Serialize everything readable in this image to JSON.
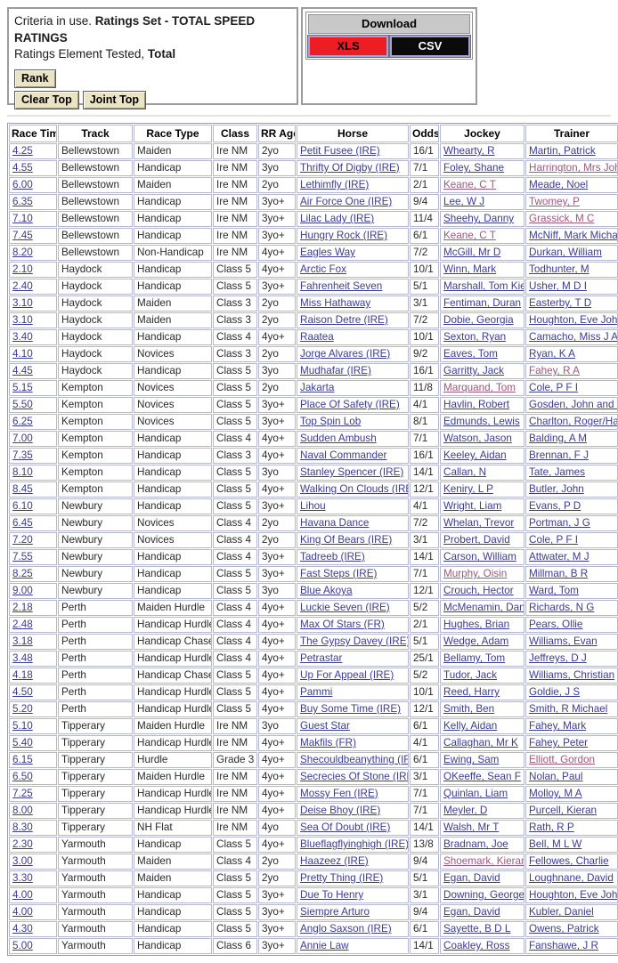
{
  "criteria": {
    "prefix": "Criteria in use. ",
    "ratings_set": "Ratings Set - TOTAL SPEED RATINGS",
    "element_prefix": "Ratings Element Tested, ",
    "element_value": "Total",
    "rank_button": "Rank",
    "clear_top_button": "Clear Top",
    "joint_top_button": "Joint Top"
  },
  "download": {
    "title": "Download",
    "xls_label": "XLS",
    "csv_label": "CSV"
  },
  "colors": {
    "link": "#3b3b99",
    "visited_link": "#a2567c",
    "xls_red": "#ee1c23",
    "csv_black": "#0b0b0b",
    "button_beige": "#ebe4c4",
    "download_header_gray": "#c8c8c8",
    "cell_border": "#b5b8cf"
  },
  "table": {
    "headers": [
      "Race Time",
      "Track",
      "Race Type",
      "Class",
      "RR Age",
      "Horse",
      "Odds",
      "Jockey",
      "Trainer"
    ],
    "rows": [
      {
        "time": "4.25",
        "track": "Bellewstown",
        "race_type": "Maiden",
        "class": "Ire NM",
        "rr_age": "2yo",
        "horse": "Petit Fusee (IRE)",
        "odds": "16/1",
        "jockey": "Whearty, R",
        "trainer": "Martin, Patrick",
        "jockey_visited": false,
        "trainer_visited": false
      },
      {
        "time": "4.55",
        "track": "Bellewstown",
        "race_type": "Handicap",
        "class": "Ire NM",
        "rr_age": "3yo",
        "horse": "Thrifty Of Digby (IRE)",
        "odds": "7/1",
        "jockey": "Foley, Shane",
        "trainer": "Harrington, Mrs John",
        "jockey_visited": false,
        "trainer_visited": true
      },
      {
        "time": "6.00",
        "track": "Bellewstown",
        "race_type": "Maiden",
        "class": "Ire NM",
        "rr_age": "2yo",
        "horse": "Lethimfly (IRE)",
        "odds": "2/1",
        "jockey": "Keane, C T",
        "trainer": "Meade, Noel",
        "jockey_visited": true,
        "trainer_visited": false
      },
      {
        "time": "6.35",
        "track": "Bellewstown",
        "race_type": "Handicap",
        "class": "Ire NM",
        "rr_age": "3yo+",
        "horse": "Air Force One (IRE)",
        "odds": "9/4",
        "jockey": "Lee, W J",
        "trainer": "Twomey, P",
        "jockey_visited": false,
        "trainer_visited": true
      },
      {
        "time": "7.10",
        "track": "Bellewstown",
        "race_type": "Handicap",
        "class": "Ire NM",
        "rr_age": "3yo+",
        "horse": "Lilac Lady (IRE)",
        "odds": "11/4",
        "jockey": "Sheehy, Danny",
        "trainer": "Grassick, M C",
        "jockey_visited": false,
        "trainer_visited": true
      },
      {
        "time": "7.45",
        "track": "Bellewstown",
        "race_type": "Handicap",
        "class": "Ire NM",
        "rr_age": "3yo+",
        "horse": "Hungry Rock (IRE)",
        "odds": "6/1",
        "jockey": "Keane, C T",
        "trainer": "McNiff, Mark Michael",
        "jockey_visited": true,
        "trainer_visited": false
      },
      {
        "time": "8.20",
        "track": "Bellewstown",
        "race_type": "Non-Handicap",
        "class": "Ire NM",
        "rr_age": "4yo+",
        "horse": "Eagles Way",
        "odds": "7/2",
        "jockey": "McGill, Mr D",
        "trainer": "Durkan, William",
        "jockey_visited": false,
        "trainer_visited": false
      },
      {
        "time": "2.10",
        "track": "Haydock",
        "race_type": "Handicap",
        "class": "Class 5",
        "rr_age": "4yo+",
        "horse": "Arctic Fox",
        "odds": "10/1",
        "jockey": "Winn, Mark",
        "trainer": "Todhunter, M",
        "jockey_visited": false,
        "trainer_visited": false
      },
      {
        "time": "2.40",
        "track": "Haydock",
        "race_type": "Handicap",
        "class": "Class 5",
        "rr_age": "3yo+",
        "horse": "Fahrenheit Seven",
        "odds": "5/1",
        "jockey": "Marshall, Tom Kiely",
        "trainer": "Usher, M D I",
        "jockey_visited": false,
        "trainer_visited": false
      },
      {
        "time": "3.10",
        "track": "Haydock",
        "race_type": "Maiden",
        "class": "Class 3",
        "rr_age": "2yo",
        "horse": "Miss Hathaway",
        "odds": "3/1",
        "jockey": "Fentiman, Duran",
        "trainer": "Easterby, T D",
        "jockey_visited": false,
        "trainer_visited": false
      },
      {
        "time": "3.10",
        "track": "Haydock",
        "race_type": "Maiden",
        "class": "Class 3",
        "rr_age": "2yo",
        "horse": "Raison Detre (IRE)",
        "odds": "7/2",
        "jockey": "Dobie, Georgia",
        "trainer": "Houghton, Eve Johnson",
        "jockey_visited": false,
        "trainer_visited": false
      },
      {
        "time": "3.40",
        "track": "Haydock",
        "race_type": "Handicap",
        "class": "Class 4",
        "rr_age": "4yo+",
        "horse": "Raatea",
        "odds": "10/1",
        "jockey": "Sexton, Ryan",
        "trainer": "Camacho, Miss J A",
        "jockey_visited": false,
        "trainer_visited": false
      },
      {
        "time": "4.10",
        "track": "Haydock",
        "race_type": "Novices",
        "class": "Class 3",
        "rr_age": "2yo",
        "horse": "Jorge Alvares (IRE)",
        "odds": "9/2",
        "jockey": "Eaves, Tom",
        "trainer": "Ryan, K A",
        "jockey_visited": false,
        "trainer_visited": false
      },
      {
        "time": "4.45",
        "track": "Haydock",
        "race_type": "Handicap",
        "class": "Class 5",
        "rr_age": "3yo",
        "horse": "Mudhafar (IRE)",
        "odds": "16/1",
        "jockey": "Garritty, Jack",
        "trainer": "Fahey, R A",
        "jockey_visited": false,
        "trainer_visited": true
      },
      {
        "time": "5.15",
        "track": "Kempton",
        "race_type": "Novices",
        "class": "Class 5",
        "rr_age": "2yo",
        "horse": "Jakarta",
        "odds": "11/8",
        "jockey": "Marquand, Tom",
        "trainer": "Cole, P F I",
        "jockey_visited": true,
        "trainer_visited": false
      },
      {
        "time": "5.50",
        "track": "Kempton",
        "race_type": "Novices",
        "class": "Class 5",
        "rr_age": "3yo+",
        "horse": "Place Of Safety (IRE)",
        "odds": "4/1",
        "jockey": "Havlin, Robert",
        "trainer": "Gosden, John and Thady",
        "jockey_visited": false,
        "trainer_visited": false
      },
      {
        "time": "6.25",
        "track": "Kempton",
        "race_type": "Novices",
        "class": "Class 5",
        "rr_age": "3yo+",
        "horse": "Top Spin Lob",
        "odds": "8/1",
        "jockey": "Edmunds, Lewis",
        "trainer": "Charlton, Roger/Harry",
        "jockey_visited": false,
        "trainer_visited": false
      },
      {
        "time": "7.00",
        "track": "Kempton",
        "race_type": "Handicap",
        "class": "Class 4",
        "rr_age": "4yo+",
        "horse": "Sudden Ambush",
        "odds": "7/1",
        "jockey": "Watson, Jason",
        "trainer": "Balding, A M",
        "jockey_visited": false,
        "trainer_visited": false
      },
      {
        "time": "7.35",
        "track": "Kempton",
        "race_type": "Handicap",
        "class": "Class 3",
        "rr_age": "4yo+",
        "horse": "Naval Commander",
        "odds": "16/1",
        "jockey": "Keeley, Aidan",
        "trainer": "Brennan, F J",
        "jockey_visited": false,
        "trainer_visited": false
      },
      {
        "time": "8.10",
        "track": "Kempton",
        "race_type": "Handicap",
        "class": "Class 5",
        "rr_age": "3yo",
        "horse": "Stanley Spencer (IRE)",
        "odds": "14/1",
        "jockey": "Callan, N",
        "trainer": "Tate, James",
        "jockey_visited": false,
        "trainer_visited": false
      },
      {
        "time": "8.45",
        "track": "Kempton",
        "race_type": "Handicap",
        "class": "Class 5",
        "rr_age": "4yo+",
        "horse": "Walking On Clouds (IRE)",
        "odds": "12/1",
        "jockey": "Keniry, L P",
        "trainer": "Butler, John",
        "jockey_visited": false,
        "trainer_visited": false
      },
      {
        "time": "6.10",
        "track": "Newbury",
        "race_type": "Handicap",
        "class": "Class 5",
        "rr_age": "3yo+",
        "horse": "Lihou",
        "odds": "4/1",
        "jockey": "Wright, Liam",
        "trainer": "Evans, P D",
        "jockey_visited": false,
        "trainer_visited": false
      },
      {
        "time": "6.45",
        "track": "Newbury",
        "race_type": "Novices",
        "class": "Class 4",
        "rr_age": "2yo",
        "horse": "Havana Dance",
        "odds": "7/2",
        "jockey": "Whelan, Trevor",
        "trainer": "Portman, J G",
        "jockey_visited": false,
        "trainer_visited": false
      },
      {
        "time": "7.20",
        "track": "Newbury",
        "race_type": "Novices",
        "class": "Class 4",
        "rr_age": "2yo",
        "horse": "King Of Bears (IRE)",
        "odds": "3/1",
        "jockey": "Probert, David",
        "trainer": "Cole, P F I",
        "jockey_visited": false,
        "trainer_visited": false
      },
      {
        "time": "7.55",
        "track": "Newbury",
        "race_type": "Handicap",
        "class": "Class 4",
        "rr_age": "3yo+",
        "horse": "Tadreeb (IRE)",
        "odds": "14/1",
        "jockey": "Carson, William",
        "trainer": "Attwater, M J",
        "jockey_visited": false,
        "trainer_visited": false
      },
      {
        "time": "8.25",
        "track": "Newbury",
        "race_type": "Handicap",
        "class": "Class 5",
        "rr_age": "3yo+",
        "horse": "Fast Steps (IRE)",
        "odds": "7/1",
        "jockey": "Murphy, Oisin",
        "trainer": "Millman, B R",
        "jockey_visited": true,
        "trainer_visited": false
      },
      {
        "time": "9.00",
        "track": "Newbury",
        "race_type": "Handicap",
        "class": "Class 5",
        "rr_age": "3yo",
        "horse": "Blue Akoya",
        "odds": "12/1",
        "jockey": "Crouch, Hector",
        "trainer": "Ward, Tom",
        "jockey_visited": false,
        "trainer_visited": false
      },
      {
        "time": "2.18",
        "track": "Perth",
        "race_type": "Maiden Hurdle",
        "class": "Class 4",
        "rr_age": "4yo+",
        "horse": "Luckie Seven (IRE)",
        "odds": "5/2",
        "jockey": "McMenamin, Daniel",
        "trainer": "Richards, N G",
        "jockey_visited": false,
        "trainer_visited": false
      },
      {
        "time": "2.48",
        "track": "Perth",
        "race_type": "Handicap Hurdle",
        "class": "Class 4",
        "rr_age": "4yo+",
        "horse": "Max Of Stars (FR)",
        "odds": "2/1",
        "jockey": "Hughes, Brian",
        "trainer": "Pears, Ollie",
        "jockey_visited": false,
        "trainer_visited": false
      },
      {
        "time": "3.18",
        "track": "Perth",
        "race_type": "Handicap Chase",
        "class": "Class 4",
        "rr_age": "4yo+",
        "horse": "The Gypsy Davey (IRE)",
        "odds": "5/1",
        "jockey": "Wedge, Adam",
        "trainer": "Williams, Evan",
        "jockey_visited": false,
        "trainer_visited": false
      },
      {
        "time": "3.48",
        "track": "Perth",
        "race_type": "Handicap Hurdle",
        "class": "Class 4",
        "rr_age": "4yo+",
        "horse": "Petrastar",
        "odds": "25/1",
        "jockey": "Bellamy, Tom",
        "trainer": "Jeffreys, D J",
        "jockey_visited": false,
        "trainer_visited": false
      },
      {
        "time": "4.18",
        "track": "Perth",
        "race_type": "Handicap Chase",
        "class": "Class 5",
        "rr_age": "4yo+",
        "horse": "Up For Appeal (IRE)",
        "odds": "5/2",
        "jockey": "Tudor, Jack",
        "trainer": "Williams, Christian",
        "jockey_visited": false,
        "trainer_visited": false
      },
      {
        "time": "4.50",
        "track": "Perth",
        "race_type": "Handicap Hurdle",
        "class": "Class 5",
        "rr_age": "4yo+",
        "horse": "Pammi",
        "odds": "10/1",
        "jockey": "Reed, Harry",
        "trainer": "Goldie, J S",
        "jockey_visited": false,
        "trainer_visited": false
      },
      {
        "time": "5.20",
        "track": "Perth",
        "race_type": "Handicap Hurdle",
        "class": "Class 5",
        "rr_age": "4yo+",
        "horse": "Buy Some Time (IRE)",
        "odds": "12/1",
        "jockey": "Smith, Ben",
        "trainer": "Smith, R Michael",
        "jockey_visited": false,
        "trainer_visited": false
      },
      {
        "time": "5.10",
        "track": "Tipperary",
        "race_type": "Maiden Hurdle",
        "class": "Ire NM",
        "rr_age": "3yo",
        "horse": "Guest Star",
        "odds": "6/1",
        "jockey": "Kelly, Aidan",
        "trainer": "Fahey, Mark",
        "jockey_visited": false,
        "trainer_visited": false
      },
      {
        "time": "5.40",
        "track": "Tipperary",
        "race_type": "Handicap Hurdle",
        "class": "Ire NM",
        "rr_age": "4yo+",
        "horse": "Makfils (FR)",
        "odds": "4/1",
        "jockey": "Callaghan, Mr K",
        "trainer": "Fahey, Peter",
        "jockey_visited": false,
        "trainer_visited": false
      },
      {
        "time": "6.15",
        "track": "Tipperary",
        "race_type": "Hurdle",
        "class": "Grade 3",
        "rr_age": "4yo+",
        "horse": "Shecouldbeanything (IRE)",
        "odds": "6/1",
        "jockey": "Ewing, Sam",
        "trainer": "Elliott, Gordon",
        "jockey_visited": false,
        "trainer_visited": true
      },
      {
        "time": "6.50",
        "track": "Tipperary",
        "race_type": "Maiden Hurdle",
        "class": "Ire NM",
        "rr_age": "4yo+",
        "horse": "Secrecies Of Stone (IRE)",
        "odds": "3/1",
        "jockey": "OKeeffe, Sean F",
        "trainer": "Nolan, Paul",
        "jockey_visited": false,
        "trainer_visited": false
      },
      {
        "time": "7.25",
        "track": "Tipperary",
        "race_type": "Handicap Hurdle",
        "class": "Ire NM",
        "rr_age": "4yo+",
        "horse": "Mossy Fen (IRE)",
        "odds": "7/1",
        "jockey": "Quinlan, Liam",
        "trainer": "Molloy, M A",
        "jockey_visited": false,
        "trainer_visited": false
      },
      {
        "time": "8.00",
        "track": "Tipperary",
        "race_type": "Handicap Hurdle",
        "class": "Ire NM",
        "rr_age": "4yo+",
        "horse": "Deise Bhoy (IRE)",
        "odds": "7/1",
        "jockey": "Meyler, D",
        "trainer": "Purcell, Kieran",
        "jockey_visited": false,
        "trainer_visited": false
      },
      {
        "time": "8.30",
        "track": "Tipperary",
        "race_type": "NH Flat",
        "class": "Ire NM",
        "rr_age": "4yo",
        "horse": "Sea Of Doubt (IRE)",
        "odds": "14/1",
        "jockey": "Walsh, Mr T",
        "trainer": "Rath, R P",
        "jockey_visited": false,
        "trainer_visited": false
      },
      {
        "time": "2.30",
        "track": "Yarmouth",
        "race_type": "Handicap",
        "class": "Class 5",
        "rr_age": "4yo+",
        "horse": "Blueflagflyinghigh (IRE)",
        "odds": "13/8",
        "jockey": "Bradnam, Joe",
        "trainer": "Bell, M L W",
        "jockey_visited": false,
        "trainer_visited": false
      },
      {
        "time": "3.00",
        "track": "Yarmouth",
        "race_type": "Maiden",
        "class": "Class 4",
        "rr_age": "2yo",
        "horse": "Haazeez (IRE)",
        "odds": "9/4",
        "jockey": "Shoemark, Kieran",
        "trainer": "Fellowes, Charlie",
        "jockey_visited": true,
        "trainer_visited": false
      },
      {
        "time": "3.30",
        "track": "Yarmouth",
        "race_type": "Maiden",
        "class": "Class 5",
        "rr_age": "2yo",
        "horse": "Pretty Thing (IRE)",
        "odds": "5/1",
        "jockey": "Egan, David",
        "trainer": "Loughnane, David",
        "jockey_visited": false,
        "trainer_visited": false
      },
      {
        "time": "4.00",
        "track": "Yarmouth",
        "race_type": "Handicap",
        "class": "Class 5",
        "rr_age": "3yo+",
        "horse": "Due To Henry",
        "odds": "3/1",
        "jockey": "Downing, George",
        "trainer": "Houghton, Eve Johnson",
        "jockey_visited": false,
        "trainer_visited": false
      },
      {
        "time": "4.00",
        "track": "Yarmouth",
        "race_type": "Handicap",
        "class": "Class 5",
        "rr_age": "3yo+",
        "horse": "Siempre Arturo",
        "odds": "9/4",
        "jockey": "Egan, David",
        "trainer": "Kubler, Daniel",
        "jockey_visited": false,
        "trainer_visited": false
      },
      {
        "time": "4.30",
        "track": "Yarmouth",
        "race_type": "Handicap",
        "class": "Class 5",
        "rr_age": "3yo+",
        "horse": "Anglo Saxson (IRE)",
        "odds": "6/1",
        "jockey": "Sayette, B D L",
        "trainer": "Owens, Patrick",
        "jockey_visited": false,
        "trainer_visited": false
      },
      {
        "time": "5.00",
        "track": "Yarmouth",
        "race_type": "Handicap",
        "class": "Class 6",
        "rr_age": "3yo+",
        "horse": "Annie Law",
        "odds": "14/1",
        "jockey": "Coakley, Ross",
        "trainer": "Fanshawe, J R",
        "jockey_visited": false,
        "trainer_visited": false
      }
    ]
  }
}
